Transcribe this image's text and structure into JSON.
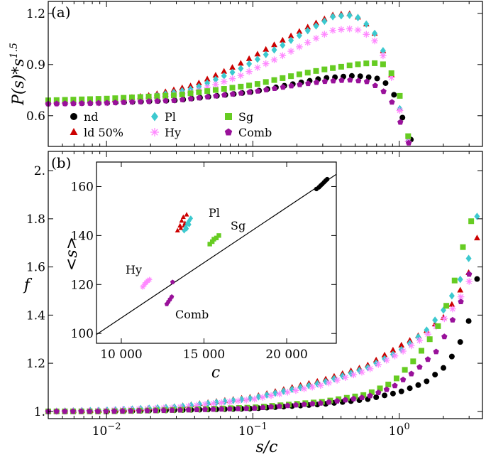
{
  "colors": {
    "nd": "#000000",
    "ld": "#cc0000",
    "Pl": "#3cc9cf",
    "Hy": "#ff88ff",
    "Sg": "#66cc22",
    "Comb": "#99119a"
  },
  "chart_data": [
    {
      "type": "scatter",
      "panel_label": "(a)",
      "xlabel": "",
      "ylabel": "P(s)*s^1.5",
      "xscale": "log",
      "xlim": [
        0.004,
        3.7
      ],
      "ylim": [
        0.42,
        1.27
      ],
      "yticks": [
        "0.6",
        "0.9",
        "1.2"
      ],
      "legend": {
        "placement": "lower-left",
        "entries": [
          {
            "key": "nd",
            "label": "nd",
            "marker": "circle"
          },
          {
            "key": "ld",
            "label": "ld 50%",
            "marker": "triangle"
          },
          {
            "key": "Pl",
            "label": "Pl",
            "marker": "diamond"
          },
          {
            "key": "Hy",
            "label": "Hy",
            "marker": "asterisk"
          },
          {
            "key": "Sg",
            "label": "Sg",
            "marker": "square"
          },
          {
            "key": "Comb",
            "label": "Comb",
            "marker": "pentagon"
          }
        ]
      },
      "series": [
        {
          "key": "nd",
          "marker": "circle",
          "points": [
            [
              0.004,
              0.67
            ],
            [
              0.01,
              0.675
            ],
            [
              0.03,
              0.69
            ],
            [
              0.1,
              0.74
            ],
            [
              0.2,
              0.79
            ],
            [
              0.3,
              0.82
            ],
            [
              0.5,
              0.835
            ],
            [
              0.7,
              0.82
            ],
            [
              0.85,
              0.78
            ],
            [
              0.95,
              0.7
            ],
            [
              1.05,
              0.59
            ],
            [
              1.12,
              0.51
            ],
            [
              1.2,
              0.46
            ]
          ]
        },
        {
          "key": "ld",
          "marker": "triangle",
          "points": [
            [
              0.004,
              0.685
            ],
            [
              0.01,
              0.69
            ],
            [
              0.02,
              0.72
            ],
            [
              0.04,
              0.78
            ],
            [
              0.08,
              0.9
            ],
            [
              0.15,
              1.03
            ],
            [
              0.25,
              1.13
            ],
            [
              0.35,
              1.19
            ],
            [
              0.45,
              1.2
            ],
            [
              0.55,
              1.17
            ],
            [
              0.7,
              1.07
            ],
            [
              0.85,
              0.9
            ],
            [
              0.95,
              0.73
            ],
            [
              1.05,
              0.58
            ],
            [
              1.15,
              0.46
            ]
          ]
        },
        {
          "key": "Pl",
          "marker": "diamond",
          "points": [
            [
              0.004,
              0.68
            ],
            [
              0.01,
              0.685
            ],
            [
              0.02,
              0.71
            ],
            [
              0.04,
              0.76
            ],
            [
              0.08,
              0.87
            ],
            [
              0.15,
              1.0
            ],
            [
              0.25,
              1.11
            ],
            [
              0.35,
              1.18
            ],
            [
              0.45,
              1.19
            ],
            [
              0.55,
              1.17
            ],
            [
              0.7,
              1.07
            ],
            [
              0.85,
              0.9
            ],
            [
              0.95,
              0.73
            ],
            [
              1.05,
              0.58
            ],
            [
              1.15,
              0.45
            ]
          ]
        },
        {
          "key": "Hy",
          "marker": "asterisk",
          "points": [
            [
              0.004,
              0.67
            ],
            [
              0.01,
              0.675
            ],
            [
              0.02,
              0.7
            ],
            [
              0.04,
              0.74
            ],
            [
              0.08,
              0.83
            ],
            [
              0.15,
              0.94
            ],
            [
              0.25,
              1.04
            ],
            [
              0.35,
              1.1
            ],
            [
              0.45,
              1.11
            ],
            [
              0.55,
              1.1
            ],
            [
              0.7,
              1.03
            ],
            [
              0.85,
              0.88
            ],
            [
              0.95,
              0.72
            ],
            [
              1.05,
              0.57
            ],
            [
              1.15,
              0.45
            ]
          ]
        },
        {
          "key": "Sg",
          "marker": "square",
          "points": [
            [
              0.004,
              0.69
            ],
            [
              0.01,
              0.7
            ],
            [
              0.03,
              0.72
            ],
            [
              0.1,
              0.78
            ],
            [
              0.2,
              0.84
            ],
            [
              0.3,
              0.87
            ],
            [
              0.5,
              0.9
            ],
            [
              0.65,
              0.91
            ],
            [
              0.8,
              0.9
            ],
            [
              0.9,
              0.84
            ],
            [
              1.0,
              0.73
            ],
            [
              1.08,
              0.6
            ],
            [
              1.15,
              0.48
            ]
          ]
        },
        {
          "key": "Comb",
          "marker": "pentagon",
          "points": [
            [
              0.004,
              0.67
            ],
            [
              0.01,
              0.675
            ],
            [
              0.03,
              0.69
            ],
            [
              0.1,
              0.74
            ],
            [
              0.2,
              0.78
            ],
            [
              0.3,
              0.8
            ],
            [
              0.45,
              0.81
            ],
            [
              0.6,
              0.8
            ],
            [
              0.75,
              0.76
            ],
            [
              0.88,
              0.69
            ],
            [
              0.98,
              0.6
            ],
            [
              1.08,
              0.5
            ],
            [
              1.16,
              0.44
            ]
          ]
        }
      ]
    },
    {
      "type": "scatter",
      "panel_label": "(b)",
      "xlabel": "s/c",
      "ylabel": "f",
      "xscale": "log",
      "xlim": [
        0.004,
        3.7
      ],
      "ylim": [
        0.97,
        2.08
      ],
      "xticks": [
        "10^-2",
        "10^-1",
        "10^0"
      ],
      "yticks": [
        "1.",
        "1.2",
        "1.4",
        "1.6",
        "1.8",
        "2."
      ],
      "series": [
        {
          "key": "nd",
          "marker": "circle",
          "points": [
            [
              0.004,
              1.0
            ],
            [
              0.01,
              1.0
            ],
            [
              0.03,
              1.005
            ],
            [
              0.1,
              1.012
            ],
            [
              0.3,
              1.03
            ],
            [
              0.6,
              1.05
            ],
            [
              1.0,
              1.08
            ],
            [
              1.5,
              1.12
            ],
            [
              2.0,
              1.18
            ],
            [
              2.5,
              1.26
            ],
            [
              3.0,
              1.38
            ],
            [
              3.4,
              1.55
            ]
          ]
        },
        {
          "key": "ld",
          "marker": "triangle",
          "points": [
            [
              0.004,
              1.0
            ],
            [
              0.01,
              1.005
            ],
            [
              0.03,
              1.02
            ],
            [
              0.1,
              1.06
            ],
            [
              0.3,
              1.13
            ],
            [
              0.6,
              1.19
            ],
            [
              1.0,
              1.27
            ],
            [
              1.5,
              1.33
            ],
            [
              2.0,
              1.39
            ],
            [
              2.5,
              1.48
            ],
            [
              3.0,
              1.58
            ],
            [
              3.4,
              1.72
            ]
          ]
        },
        {
          "key": "Pl",
          "marker": "diamond",
          "points": [
            [
              0.004,
              1.0
            ],
            [
              0.01,
              1.005
            ],
            [
              0.03,
              1.018
            ],
            [
              0.1,
              1.055
            ],
            [
              0.3,
              1.12
            ],
            [
              0.6,
              1.18
            ],
            [
              1.0,
              1.25
            ],
            [
              1.5,
              1.33
            ],
            [
              2.0,
              1.42
            ],
            [
              2.5,
              1.52
            ],
            [
              3.0,
              1.64
            ],
            [
              3.4,
              1.81
            ]
          ]
        },
        {
          "key": "Hy",
          "marker": "asterisk",
          "points": [
            [
              0.004,
              1.0
            ],
            [
              0.01,
              1.004
            ],
            [
              0.03,
              1.016
            ],
            [
              0.1,
              1.05
            ],
            [
              0.3,
              1.11
            ],
            [
              0.6,
              1.17
            ],
            [
              1.0,
              1.24
            ],
            [
              1.5,
              1.31
            ],
            [
              2.0,
              1.38
            ],
            [
              2.5,
              1.45
            ],
            [
              3.0,
              1.54
            ]
          ]
        },
        {
          "key": "Sg",
          "marker": "square",
          "points": [
            [
              0.004,
              1.0
            ],
            [
              0.01,
              1.0
            ],
            [
              0.03,
              1.006
            ],
            [
              0.1,
              1.016
            ],
            [
              0.3,
              1.04
            ],
            [
              0.6,
              1.07
            ],
            [
              0.9,
              1.12
            ],
            [
              1.3,
              1.22
            ],
            [
              1.8,
              1.34
            ],
            [
              2.2,
              1.47
            ],
            [
              2.6,
              1.62
            ],
            [
              2.9,
              1.77
            ],
            [
              3.1,
              1.79
            ]
          ]
        },
        {
          "key": "Comb",
          "marker": "pentagon",
          "points": [
            [
              0.004,
              1.0
            ],
            [
              0.01,
              1.0
            ],
            [
              0.03,
              1.005
            ],
            [
              0.1,
              1.013
            ],
            [
              0.3,
              1.035
            ],
            [
              0.6,
              1.06
            ],
            [
              0.9,
              1.1
            ],
            [
              1.3,
              1.17
            ],
            [
              1.8,
              1.25
            ],
            [
              2.2,
              1.35
            ],
            [
              2.7,
              1.47
            ],
            [
              3.0,
              1.57
            ]
          ]
        }
      ]
    },
    {
      "type": "scatter",
      "panel_label": "",
      "xlabel": "c",
      "ylabel": "<s>",
      "xscale": "linear",
      "xlim": [
        8500,
        23000
      ],
      "ylim": [
        96,
        170
      ],
      "xticks": [
        "10 000",
        "15 000",
        "20 000"
      ],
      "yticks": [
        "100",
        "120",
        "140",
        "160"
      ],
      "annotations": [
        "Pl",
        "Sg",
        "Hy",
        "Comb"
      ],
      "fit_line": {
        "x": [
          8500,
          23000
        ],
        "y": [
          99.6,
          165
        ]
      },
      "series": [
        {
          "key": "nd",
          "marker": "circle",
          "points": [
            [
              21800,
              159
            ],
            [
              21950,
              159.7
            ],
            [
              22050,
              160.4
            ],
            [
              22150,
              161
            ],
            [
              22250,
              161.7
            ],
            [
              22350,
              162.4
            ],
            [
              22450,
              163
            ]
          ]
        },
        {
          "key": "ld",
          "marker": "triangle",
          "points": [
            [
              13400,
              142
            ],
            [
              13550,
              144
            ],
            [
              13650,
              146
            ],
            [
              13750,
              147.5
            ],
            [
              13850,
              145
            ],
            [
              13950,
              148.5
            ],
            [
              13600,
              143
            ],
            [
              13800,
              144
            ]
          ]
        },
        {
          "key": "Pl",
          "marker": "diamond",
          "points": [
            [
              13800,
              142
            ],
            [
              13900,
              143.5
            ],
            [
              14000,
              145
            ],
            [
              14100,
              146
            ],
            [
              13950,
              142.8
            ],
            [
              14100,
              144.5
            ],
            [
              14200,
              147
            ]
          ]
        },
        {
          "key": "Sg",
          "marker": "square",
          "points": [
            [
              15350,
              136.5
            ],
            [
              15500,
              137.5
            ],
            [
              15600,
              138.5
            ],
            [
              15750,
              139
            ],
            [
              15900,
              140
            ]
          ]
        },
        {
          "key": "Hy",
          "marker": "asterisk",
          "points": [
            [
              11300,
              119
            ],
            [
              11400,
              120
            ],
            [
              11500,
              120.8
            ],
            [
              11600,
              121.5
            ],
            [
              11700,
              122
            ]
          ]
        },
        {
          "key": "Comb",
          "marker": "pentagon",
          "points": [
            [
              12750,
              112
            ],
            [
              12850,
              113
            ],
            [
              12950,
              114
            ],
            [
              13050,
              115
            ],
            [
              13100,
              121
            ]
          ]
        }
      ]
    }
  ]
}
